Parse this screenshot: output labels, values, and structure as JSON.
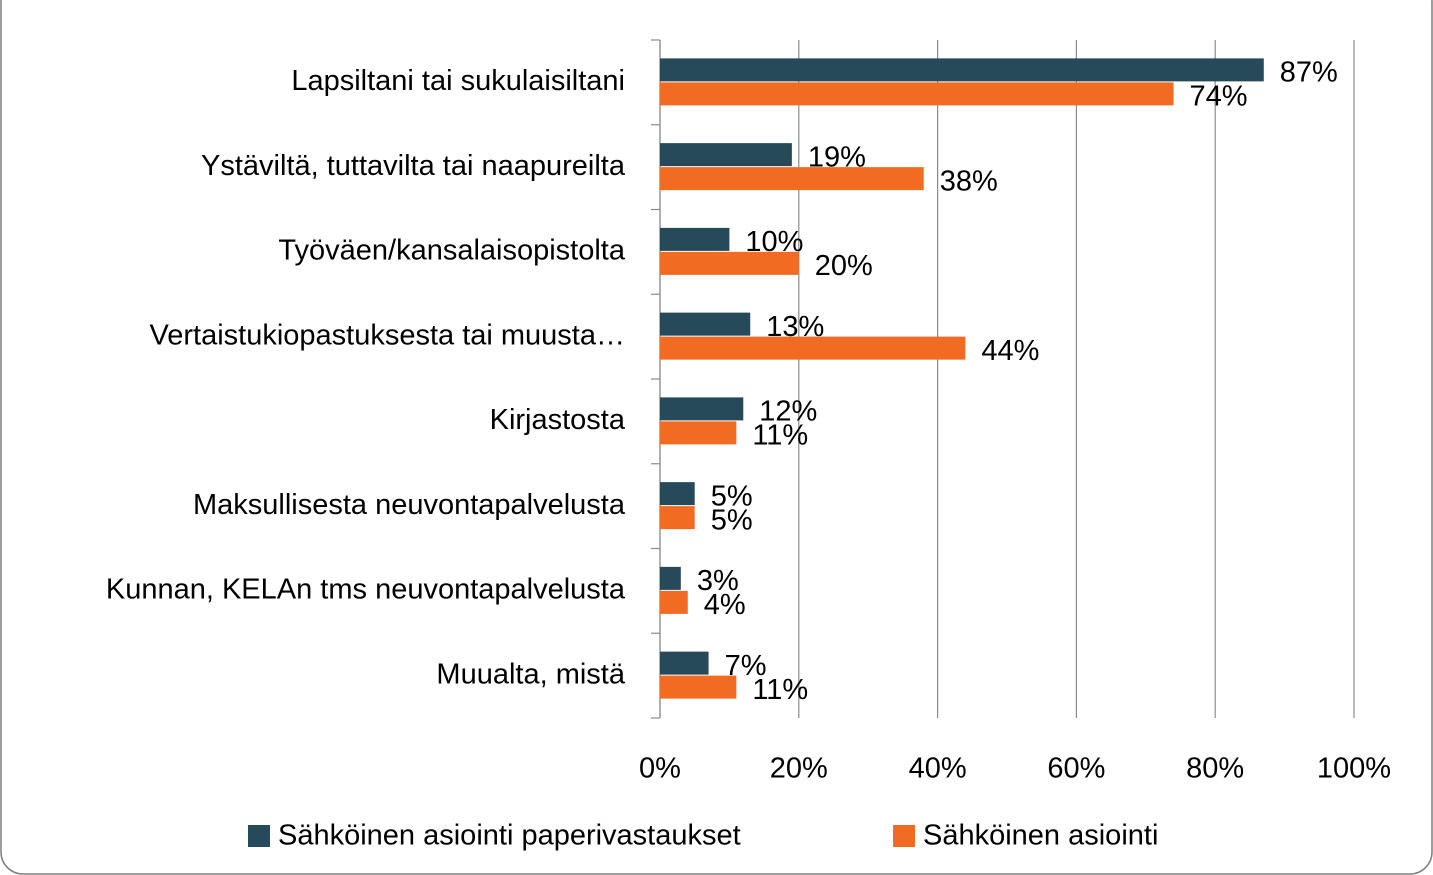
{
  "chart_data": {
    "type": "bar",
    "orientation": "horizontal",
    "categories": [
      "Lapsiltani tai sukulaisiltani",
      "Ystäviltä, tuttavilta tai naapureilta",
      "Työväen/kansalaisopistolta",
      "Vertaistukiopastuksesta tai muusta…",
      "Kirjastosta",
      "Maksullisesta neuvontapalvelusta",
      "Kunnan, KELAn tms neuvontapalvelusta",
      "Muualta, mistä"
    ],
    "series": [
      {
        "name": "Sähköinen asiointi paperivastaukset",
        "color": "#264a5a",
        "values": [
          87,
          19,
          10,
          13,
          12,
          5,
          3,
          7
        ],
        "value_labels": [
          "87%",
          "19%",
          "10%",
          "13%",
          "12%",
          "5%",
          "3%",
          "7%"
        ]
      },
      {
        "name": "Sähköinen asiointi",
        "color": "#f26b22",
        "values": [
          74,
          38,
          20,
          44,
          11,
          5,
          4,
          11
        ],
        "value_labels": [
          "74%",
          "38%",
          "20%",
          "44%",
          "11%",
          "5%",
          "4%",
          "11%"
        ]
      }
    ],
    "xlim": [
      0,
      100
    ],
    "xticks": [
      {
        "value": 0,
        "label": "0%"
      },
      {
        "value": 20,
        "label": "20%"
      },
      {
        "value": 40,
        "label": "40%"
      },
      {
        "value": 60,
        "label": "60%"
      },
      {
        "value": 80,
        "label": "80%"
      },
      {
        "value": 100,
        "label": "100%"
      }
    ],
    "grid": true,
    "legend": "bottom"
  }
}
